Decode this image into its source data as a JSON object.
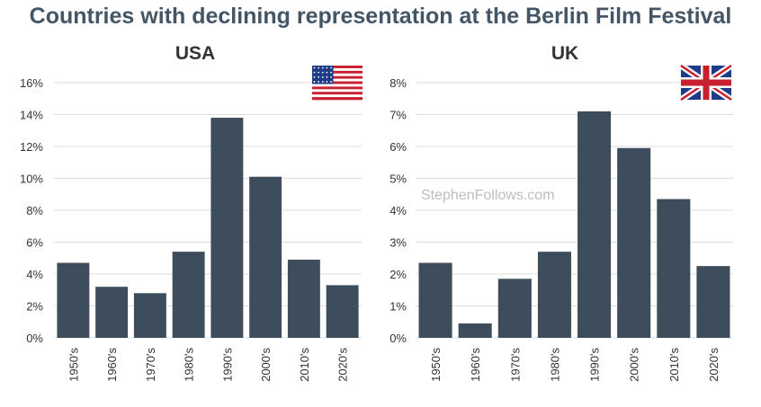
{
  "title": "Countries with declining representation at the Berlin Film Festival",
  "watermark": "StephenFollows.com",
  "colors": {
    "bar": "#3d4d5c",
    "grid": "#dddddd",
    "title": "#445566"
  },
  "chart_data": [
    {
      "type": "bar",
      "title": "USA",
      "flag": "usa-flag",
      "categories": [
        "1950's",
        "1960's",
        "1970's",
        "1980's",
        "1990's",
        "2000's",
        "2010's",
        "2020's"
      ],
      "values": [
        4.7,
        3.2,
        2.8,
        5.4,
        13.8,
        10.1,
        4.9,
        3.3
      ],
      "yticks": [
        "0%",
        "2%",
        "4%",
        "6%",
        "8%",
        "10%",
        "12%",
        "14%",
        "16%"
      ],
      "ylim": [
        0,
        16
      ],
      "xlabel": "",
      "ylabel": "",
      "grid": true
    },
    {
      "type": "bar",
      "title": "UK",
      "flag": "uk-flag",
      "categories": [
        "1950's",
        "1960's",
        "1970's",
        "1980's",
        "1990's",
        "2000's",
        "2010's",
        "2020's"
      ],
      "values": [
        2.35,
        0.45,
        1.85,
        2.7,
        7.1,
        5.95,
        4.35,
        2.25
      ],
      "yticks": [
        "0%",
        "1%",
        "2%",
        "3%",
        "4%",
        "5%",
        "6%",
        "7%",
        "8%"
      ],
      "ylim": [
        0,
        8
      ],
      "xlabel": "",
      "ylabel": "",
      "grid": true
    }
  ]
}
